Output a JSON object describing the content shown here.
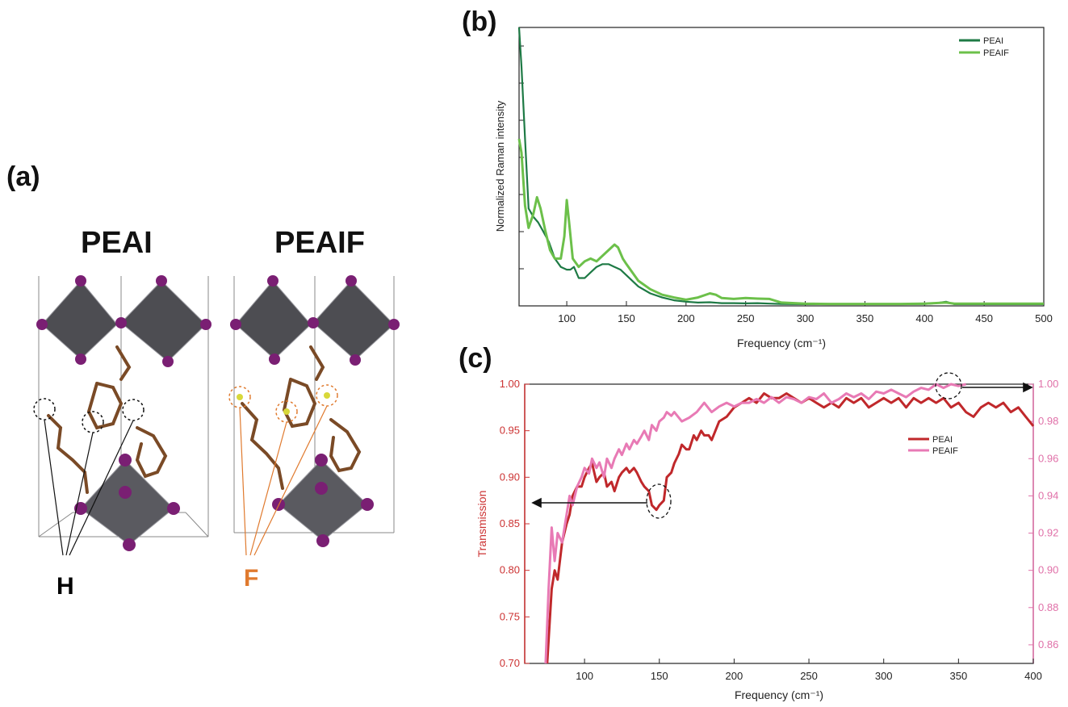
{
  "panel_a": {
    "letter": "(a)",
    "left_title": "PEAI",
    "right_title": "PEAIF",
    "h_label": "H",
    "f_label": "F",
    "colors": {
      "h_label": "#111111",
      "f_label": "#e07a2e",
      "octahedron": "#4d4d52",
      "iodine": "#7a1f73",
      "carbon": "#7a4a26"
    }
  },
  "panel_b": {
    "letter": "(b)"
  },
  "panel_c": {
    "letter": "(c)"
  },
  "chart_data": [
    {
      "type": "line",
      "ylabel": "Normalized Raman intensity",
      "xlabel": "Frequency (cm⁻¹)",
      "xlim": [
        60,
        500
      ],
      "ylim": [
        0,
        1
      ],
      "x_ticks": [
        100,
        150,
        200,
        250,
        300,
        350,
        400,
        450,
        500
      ],
      "y_tick_labels_shown": false,
      "legend_position": "top-right",
      "series": [
        {
          "name": "PEAI",
          "color": "#1e7a45",
          "x": [
            60,
            62,
            65,
            68,
            72,
            76,
            80,
            85,
            90,
            95,
            100,
            103,
            106,
            110,
            115,
            120,
            125,
            130,
            135,
            140,
            145,
            150,
            160,
            170,
            180,
            190,
            200,
            210,
            220,
            230,
            240,
            250,
            260,
            270,
            280,
            300,
            320,
            350,
            380,
            400,
            410,
            418,
            425,
            450,
            500
          ],
          "y": [
            1.0,
            0.86,
            0.6,
            0.35,
            0.32,
            0.3,
            0.27,
            0.23,
            0.17,
            0.14,
            0.13,
            0.13,
            0.14,
            0.1,
            0.1,
            0.12,
            0.14,
            0.15,
            0.15,
            0.14,
            0.13,
            0.11,
            0.07,
            0.045,
            0.03,
            0.02,
            0.015,
            0.012,
            0.013,
            0.01,
            0.01,
            0.009,
            0.01,
            0.008,
            0.007,
            0.006,
            0.006,
            0.006,
            0.006,
            0.007,
            0.01,
            0.015,
            0.006,
            0.006,
            0.006
          ]
        },
        {
          "name": "PEAIF",
          "color": "#6cc04a",
          "x": [
            60,
            62,
            65,
            68,
            72,
            75,
            78,
            82,
            86,
            90,
            95,
            98,
            100,
            102,
            105,
            110,
            115,
            120,
            125,
            130,
            135,
            140,
            143,
            147,
            150,
            160,
            170,
            180,
            190,
            200,
            210,
            220,
            225,
            230,
            240,
            250,
            260,
            270,
            280,
            300,
            320,
            350,
            380,
            400,
            418,
            425,
            450,
            500
          ],
          "y": [
            0.6,
            0.55,
            0.36,
            0.28,
            0.33,
            0.39,
            0.35,
            0.27,
            0.2,
            0.17,
            0.17,
            0.25,
            0.38,
            0.3,
            0.17,
            0.14,
            0.16,
            0.17,
            0.16,
            0.18,
            0.2,
            0.22,
            0.21,
            0.17,
            0.15,
            0.09,
            0.06,
            0.04,
            0.03,
            0.022,
            0.03,
            0.045,
            0.04,
            0.028,
            0.025,
            0.028,
            0.026,
            0.025,
            0.012,
            0.008,
            0.007,
            0.007,
            0.007,
            0.008,
            0.012,
            0.008,
            0.008,
            0.008
          ]
        }
      ]
    },
    {
      "type": "line",
      "ylabel": "Transmission",
      "xlabel": "Frequency (cm⁻¹)",
      "xlim": [
        60,
        400
      ],
      "ylim": [
        0.7,
        1.0
      ],
      "y2lim": [
        0.85,
        1.0
      ],
      "x_ticks": [
        100,
        150,
        200,
        250,
        300,
        350,
        400
      ],
      "y_ticks": [
        "0.70",
        "0.75",
        "0.80",
        "0.85",
        "0.90",
        "0.95",
        "1.00"
      ],
      "y2_ticks": [
        "0.86",
        "0.88",
        "0.90",
        "0.92",
        "0.94",
        "0.96",
        "0.98",
        "1.00"
      ],
      "left_axis_color": "#cc3333",
      "right_axis_color": "#e070a8",
      "legend_position": "center-right",
      "series": [
        {
          "name": "PEAI",
          "color": "#c0282b",
          "axis": "left",
          "x": [
            75,
            78,
            80,
            82,
            85,
            88,
            90,
            92,
            95,
            98,
            100,
            103,
            105,
            108,
            110,
            113,
            115,
            118,
            120,
            123,
            125,
            128,
            130,
            133,
            135,
            138,
            140,
            143,
            145,
            148,
            150,
            153,
            155,
            158,
            160,
            163,
            165,
            168,
            170,
            173,
            175,
            178,
            180,
            183,
            185,
            190,
            195,
            200,
            205,
            210,
            215,
            220,
            225,
            230,
            235,
            240,
            245,
            250,
            255,
            260,
            265,
            270,
            275,
            280,
            285,
            290,
            295,
            300,
            305,
            310,
            315,
            320,
            325,
            330,
            335,
            340,
            345,
            350,
            355,
            360,
            365,
            370,
            375,
            380,
            385,
            390,
            395,
            400
          ],
          "y": [
            0.7,
            0.78,
            0.8,
            0.79,
            0.83,
            0.85,
            0.86,
            0.88,
            0.89,
            0.89,
            0.9,
            0.91,
            0.915,
            0.895,
            0.9,
            0.905,
            0.89,
            0.895,
            0.885,
            0.9,
            0.905,
            0.91,
            0.905,
            0.91,
            0.905,
            0.895,
            0.89,
            0.885,
            0.87,
            0.865,
            0.87,
            0.875,
            0.9,
            0.905,
            0.915,
            0.925,
            0.935,
            0.93,
            0.93,
            0.945,
            0.94,
            0.95,
            0.945,
            0.945,
            0.94,
            0.96,
            0.965,
            0.975,
            0.98,
            0.985,
            0.98,
            0.99,
            0.985,
            0.985,
            0.99,
            0.985,
            0.98,
            0.985,
            0.98,
            0.975,
            0.98,
            0.975,
            0.985,
            0.98,
            0.985,
            0.975,
            0.98,
            0.985,
            0.98,
            0.985,
            0.975,
            0.985,
            0.98,
            0.985,
            0.98,
            0.985,
            0.975,
            0.98,
            0.97,
            0.965,
            0.975,
            0.98,
            0.975,
            0.98,
            0.97,
            0.975,
            0.965,
            0.955
          ]
        },
        {
          "name": "PEAIF",
          "color": "#e87ab5",
          "axis": "right",
          "x": [
            74,
            76,
            78,
            80,
            82,
            85,
            88,
            90,
            92,
            95,
            98,
            100,
            103,
            105,
            108,
            110,
            113,
            115,
            118,
            120,
            123,
            125,
            128,
            130,
            133,
            135,
            138,
            140,
            143,
            145,
            148,
            150,
            153,
            155,
            158,
            160,
            165,
            170,
            175,
            180,
            185,
            190,
            195,
            200,
            205,
            210,
            215,
            220,
            225,
            230,
            235,
            240,
            245,
            250,
            255,
            260,
            265,
            270,
            275,
            280,
            285,
            290,
            295,
            300,
            305,
            310,
            315,
            320,
            325,
            330,
            335,
            340,
            345,
            350,
            355
          ],
          "y": [
            0.85,
            0.89,
            0.923,
            0.905,
            0.92,
            0.915,
            0.93,
            0.94,
            0.935,
            0.945,
            0.95,
            0.955,
            0.952,
            0.96,
            0.955,
            0.958,
            0.95,
            0.96,
            0.955,
            0.96,
            0.965,
            0.962,
            0.968,
            0.965,
            0.97,
            0.968,
            0.972,
            0.975,
            0.97,
            0.978,
            0.975,
            0.98,
            0.982,
            0.985,
            0.983,
            0.985,
            0.98,
            0.982,
            0.985,
            0.99,
            0.985,
            0.988,
            0.99,
            0.988,
            0.99,
            0.99,
            0.992,
            0.99,
            0.993,
            0.99,
            0.993,
            0.992,
            0.99,
            0.993,
            0.992,
            0.995,
            0.99,
            0.992,
            0.995,
            0.993,
            0.995,
            0.992,
            0.996,
            0.995,
            0.997,
            0.995,
            0.993,
            0.996,
            0.998,
            0.997,
            1.0,
            0.998,
            1.0,
            0.999,
            1.0
          ]
        }
      ]
    }
  ]
}
